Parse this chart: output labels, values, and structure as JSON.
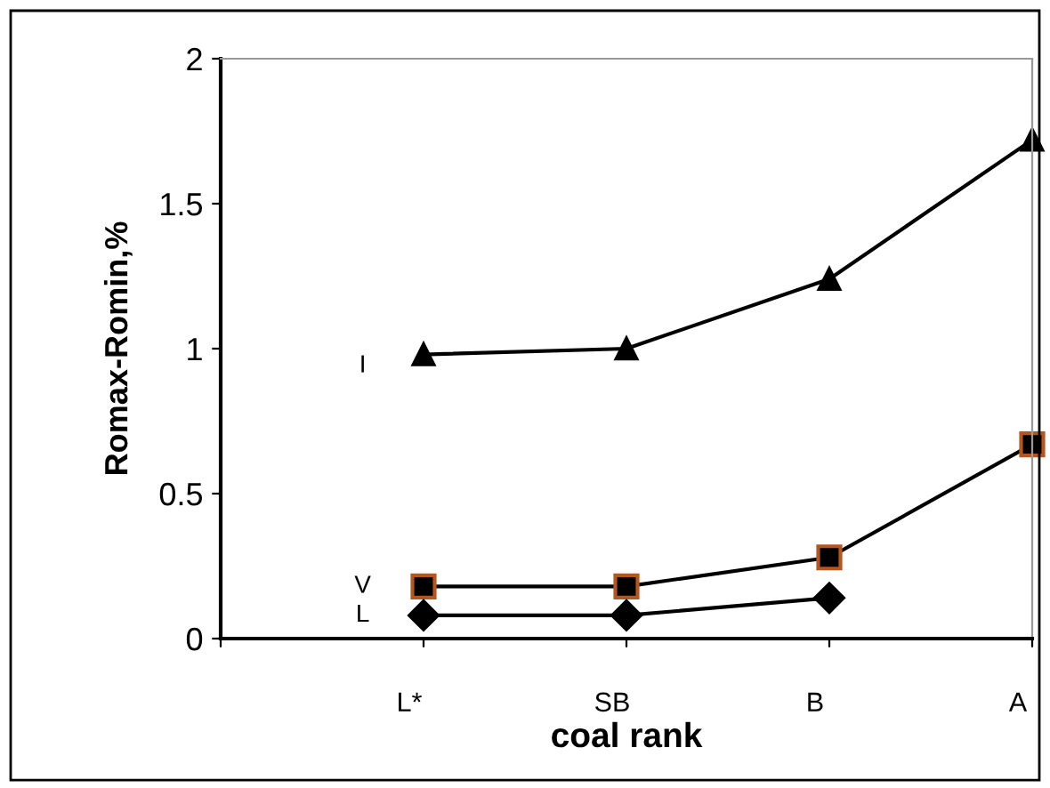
{
  "chart_data": {
    "type": "line",
    "xlabel": "coal rank",
    "ylabel": "Romax-Romin,%",
    "categories": [
      null,
      "L*",
      "SB",
      "B",
      "A"
    ],
    "series": [
      {
        "name": "I",
        "color": "#000000",
        "marker": "triangle",
        "values": [
          null,
          0.98,
          1.0,
          1.24,
          1.72
        ]
      },
      {
        "name": "V",
        "color": "#000000",
        "marker": "square",
        "values": [
          null,
          0.18,
          0.18,
          0.28,
          0.67
        ]
      },
      {
        "name": "L",
        "color": "#000000",
        "marker": "diamond",
        "values": [
          null,
          0.08,
          0.08,
          0.14,
          null
        ]
      }
    ],
    "ylim": [
      0,
      2
    ],
    "yticks": [
      0,
      0.5,
      1,
      1.5,
      2
    ],
    "grid": false,
    "legend": false
  }
}
